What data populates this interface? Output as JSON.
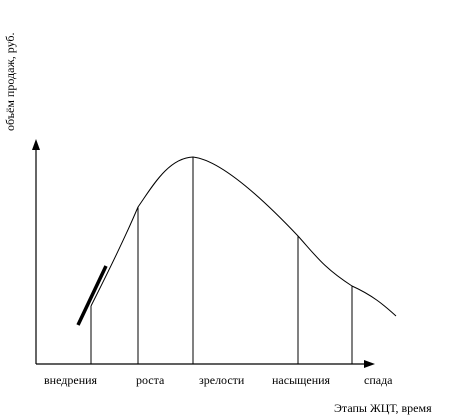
{
  "diagram": {
    "y_axis_label": "объём продаж, руб.",
    "x_axis_label": "Этапы ЖЦТ, время",
    "stages": [
      "внедрения",
      "роста",
      "зрелости",
      "насыщения",
      "спада"
    ],
    "colors": {
      "line": "#000000",
      "background": "#ffffff"
    }
  }
}
